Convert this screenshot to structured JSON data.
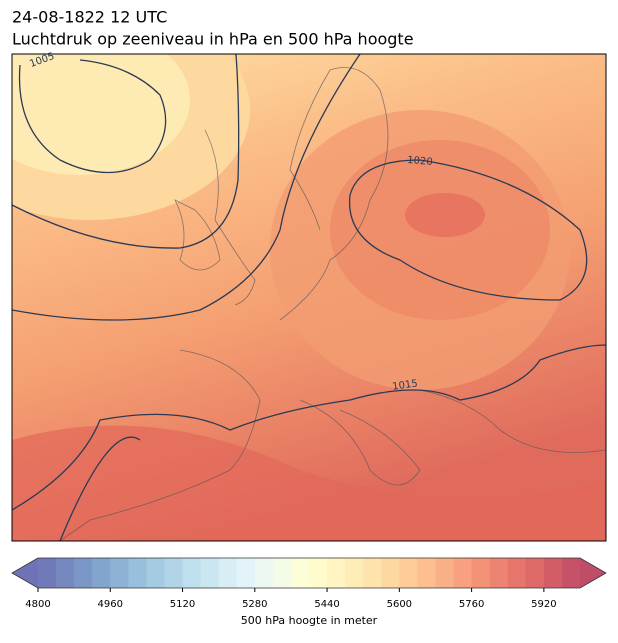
{
  "header": {
    "line1": "24-08-1822 12 UTC",
    "line2": "Luchtdruk op zeeniveau in hPa en 500 hPa hoogte"
  },
  "map": {
    "isobar_labels": [
      "1005",
      "1020",
      "1015"
    ]
  },
  "colorbar": {
    "range": [
      4800,
      6000
    ],
    "step": 40,
    "ticks": [
      4800,
      4960,
      5120,
      5280,
      5440,
      5600,
      5760,
      5920
    ],
    "label": "500 hPa hoogte in meter"
  }
}
